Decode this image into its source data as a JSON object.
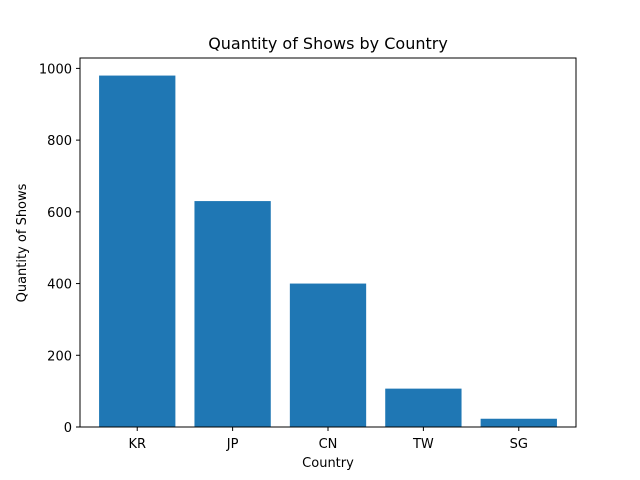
{
  "chart_data": {
    "type": "bar",
    "title": "Quantity of Shows by Country",
    "xlabel": "Country",
    "ylabel": "Quantity of Shows",
    "categories": [
      "KR",
      "JP",
      "CN",
      "TW",
      "SG"
    ],
    "values": [
      980,
      630,
      400,
      107,
      23
    ],
    "ylim": [
      0,
      1029
    ],
    "yticks": [
      0,
      200,
      400,
      600,
      800,
      1000
    ],
    "bar_color": "#1f77b4",
    "grid": false,
    "legend": "none"
  }
}
